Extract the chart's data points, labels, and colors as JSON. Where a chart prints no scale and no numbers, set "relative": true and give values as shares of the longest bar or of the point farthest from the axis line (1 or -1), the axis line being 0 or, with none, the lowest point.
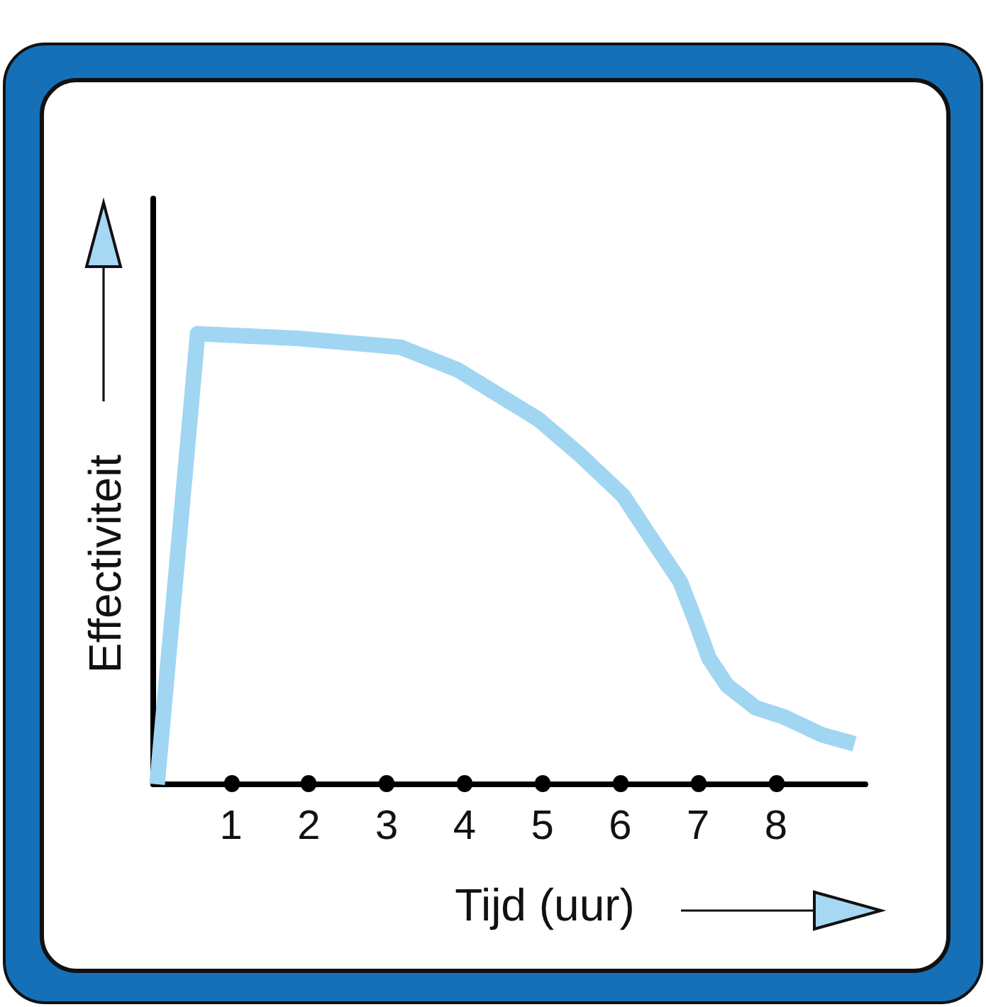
{
  "chart_data": {
    "type": "line",
    "xlabel": "Tijd (uur)",
    "ylabel": "Effectiviteit",
    "relative": true,
    "x": [
      0.05,
      0.57,
      1.84,
      3.18,
      3.91,
      4.95,
      5.49,
      6.04,
      6.46,
      6.77,
      6.95,
      7.14,
      7.37,
      7.74,
      8.1,
      8.59,
      9.01
    ],
    "values": [
      0,
      1,
      0.99,
      0.97,
      0.92,
      0.81,
      0.73,
      0.64,
      0.53,
      0.45,
      0.37,
      0.28,
      0.22,
      0.17,
      0.15,
      0.11,
      0.09
    ],
    "color": "#a0d6f2",
    "xlim": [
      0,
      9.15
    ],
    "xticks": [
      1,
      2,
      3,
      4,
      5,
      6,
      7,
      8
    ],
    "marker": "none",
    "line_style": "solid"
  }
}
